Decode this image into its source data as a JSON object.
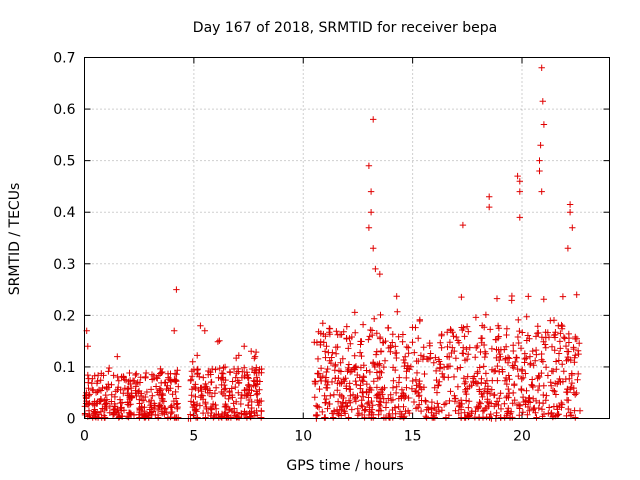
{
  "chart_data": {
    "type": "scatter",
    "title": "Day 167 of 2018, SRMTID for receiver bepa",
    "xlabel": "GPS time / hours",
    "ylabel": "SRMTID / TECUs",
    "xlim": [
      0,
      24
    ],
    "ylim": [
      0,
      0.7
    ],
    "xticks": [
      0,
      5,
      10,
      15,
      20
    ],
    "yticks": [
      0,
      0.1,
      0.2,
      0.3,
      0.4,
      0.5,
      0.6,
      0.7
    ],
    "x_tick_labels": [
      "0",
      "5",
      "10",
      "15",
      "20"
    ],
    "y_tick_labels": [
      "0",
      "0.1",
      "0.2",
      "0.3",
      "0.4",
      "0.5",
      "0.6",
      "0.7"
    ],
    "grid": true,
    "marker": "+",
    "point_color": "#e00000",
    "segments": [
      {
        "x_start": 0.0,
        "x_end": 4.3,
        "typical_max": 0.09,
        "notable_points": [
          [
            0.1,
            0.17
          ],
          [
            0.15,
            0.14
          ],
          [
            4.1,
            0.17
          ],
          [
            4.2,
            0.25
          ],
          [
            1.5,
            0.12
          ]
        ]
      },
      {
        "x_start": 4.8,
        "x_end": 8.1,
        "typical_max": 0.1,
        "notable_points": [
          [
            5.3,
            0.18
          ],
          [
            5.5,
            0.17
          ],
          [
            7.3,
            0.14
          ],
          [
            7.8,
            0.12
          ]
        ]
      },
      {
        "x_start": 10.5,
        "x_end": 22.7,
        "typical_max": 0.18,
        "notable_points": [
          [
            13.0,
            0.49
          ],
          [
            13.2,
            0.58
          ],
          [
            13.1,
            0.44
          ],
          [
            13.1,
            0.4
          ],
          [
            13.0,
            0.37
          ],
          [
            13.2,
            0.33
          ],
          [
            13.3,
            0.29
          ],
          [
            13.5,
            0.28
          ],
          [
            17.3,
            0.375
          ],
          [
            18.5,
            0.43
          ],
          [
            18.5,
            0.41
          ],
          [
            19.8,
            0.47
          ],
          [
            19.9,
            0.46
          ],
          [
            19.9,
            0.44
          ],
          [
            19.9,
            0.39
          ],
          [
            20.8,
            0.5
          ],
          [
            20.9,
            0.68
          ],
          [
            20.95,
            0.615
          ],
          [
            21.0,
            0.57
          ],
          [
            20.85,
            0.53
          ],
          [
            20.8,
            0.48
          ],
          [
            20.9,
            0.44
          ],
          [
            22.2,
            0.415
          ],
          [
            22.2,
            0.4
          ],
          [
            22.3,
            0.37
          ],
          [
            22.1,
            0.33
          ],
          [
            22.5,
            0.24
          ]
        ]
      }
    ],
    "zero_markers": [
      [
        4.75,
        0
      ],
      [
        4.85,
        0
      ],
      [
        10.6,
        0
      ],
      [
        18.6,
        0
      ],
      [
        18.8,
        0
      ]
    ]
  }
}
